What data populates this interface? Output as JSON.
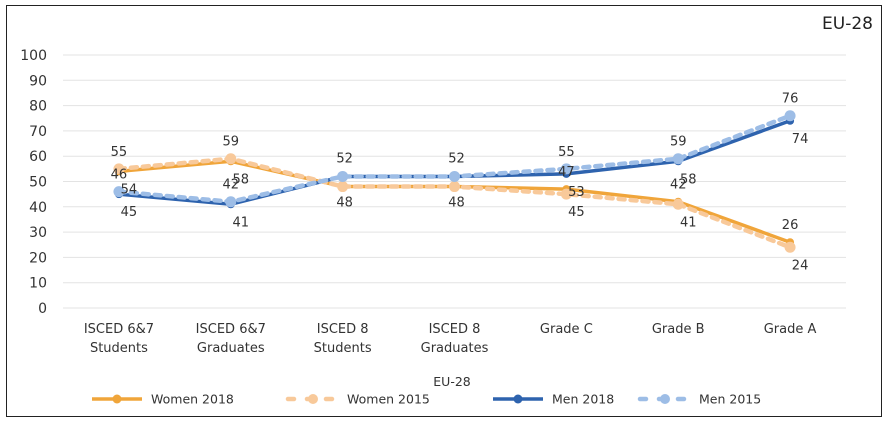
{
  "corner_label": "EU-28",
  "chart_data": {
    "type": "line",
    "title": "EU-28",
    "xlabel": "EU-28",
    "ylabel": "",
    "ylim": [
      0,
      100
    ],
    "yticks": [
      0,
      10,
      20,
      30,
      40,
      50,
      60,
      70,
      80,
      90,
      100
    ],
    "grid": true,
    "legend_position": "bottom",
    "categories": [
      [
        "ISCED 6&7",
        "Students"
      ],
      [
        "ISCED 6&7",
        "Graduates"
      ],
      [
        "ISCED 8",
        "Students"
      ],
      [
        "ISCED 8",
        "Graduates"
      ],
      [
        "Grade C"
      ],
      [
        "Grade B"
      ],
      [
        "Grade A"
      ]
    ],
    "series": [
      {
        "name": "Women 2018",
        "color": "#F0A53A",
        "style": "solid",
        "values": [
          54,
          58,
          48,
          48,
          47,
          42,
          26
        ]
      },
      {
        "name": "Women 2015",
        "color": "#F8C99A",
        "style": "dashed",
        "values": [
          55,
          59,
          48,
          48,
          45,
          41,
          24
        ]
      },
      {
        "name": "Men 2018",
        "color": "#2E63AE",
        "style": "solid",
        "values": [
          45,
          41,
          52,
          52,
          53,
          58,
          74
        ]
      },
      {
        "name": "Men 2015",
        "color": "#9DBDE6",
        "style": "dashed",
        "values": [
          46,
          42,
          52,
          52,
          55,
          59,
          76
        ]
      }
    ]
  }
}
